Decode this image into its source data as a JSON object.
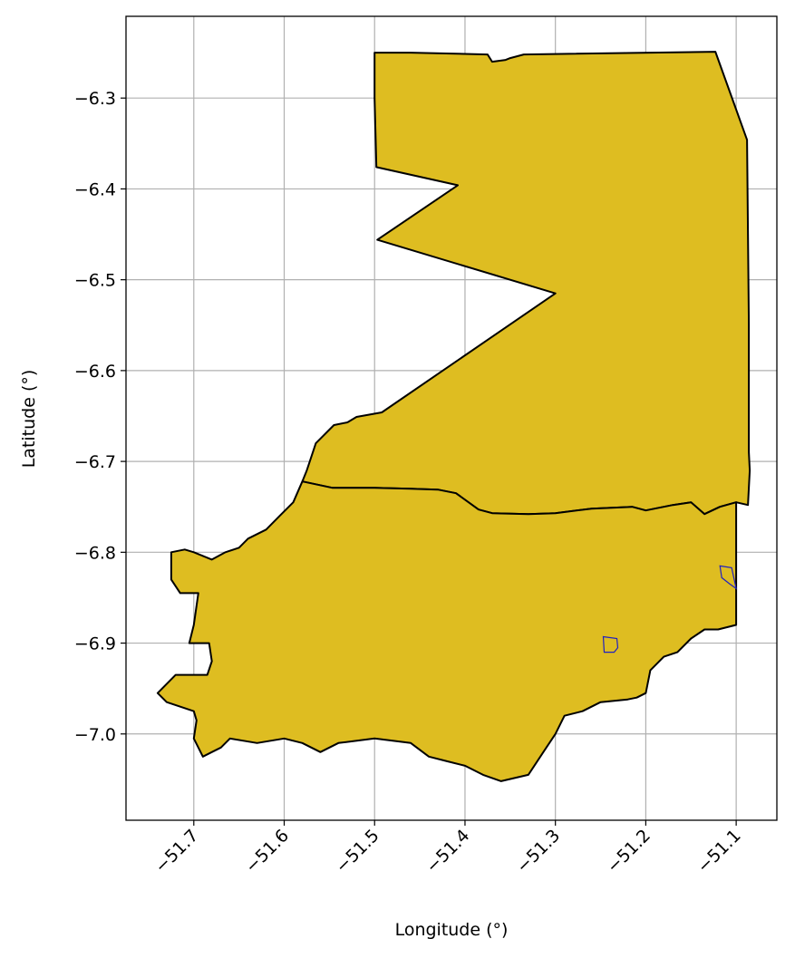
{
  "map": {
    "xlabel": "Longitude (°)",
    "ylabel": "Latitude (°)",
    "fill_color": "#DEBD21",
    "outline_color": "#000000",
    "inset_color": "#2020C0",
    "grid": true,
    "x_ticks": [
      "−51.7",
      "−51.6",
      "−51.5",
      "−51.4",
      "−51.3",
      "−51.2",
      "−51.1"
    ],
    "y_ticks": [
      "−6.3",
      "−6.4",
      "−6.5",
      "−6.6",
      "−6.7",
      "−6.8",
      "−6.9",
      "−7.0"
    ]
  },
  "chart_data": {
    "type": "map",
    "xlim": [
      -51.775,
      -51.055
    ],
    "ylim": [
      -7.095,
      -6.21
    ],
    "x_tick_values": [
      -51.7,
      -51.6,
      -51.5,
      -51.4,
      -51.3,
      -51.2,
      -51.1
    ],
    "y_tick_values": [
      -6.3,
      -6.4,
      -6.5,
      -6.6,
      -6.7,
      -6.8,
      -6.9,
      -7.0
    ],
    "regions": [
      {
        "part": "north",
        "polygon": [
          [
            -51.5,
            -6.25
          ],
          [
            -51.46,
            -6.25
          ],
          [
            -51.375,
            -6.252
          ],
          [
            -51.37,
            -6.26
          ],
          [
            -51.355,
            -6.258
          ],
          [
            -51.35,
            -6.256
          ],
          [
            -51.335,
            -6.252
          ],
          [
            -51.123,
            -6.249
          ],
          [
            -51.088,
            -6.346
          ],
          [
            -51.086,
            -6.55
          ],
          [
            -51.086,
            -6.69
          ],
          [
            -51.085,
            -6.71
          ],
          [
            -51.087,
            -6.748
          ],
          [
            -51.1,
            -6.745
          ],
          [
            -51.118,
            -6.75
          ],
          [
            -51.135,
            -6.758
          ],
          [
            -51.15,
            -6.745
          ],
          [
            -51.17,
            -6.748
          ],
          [
            -51.2,
            -6.754
          ],
          [
            -51.215,
            -6.75
          ],
          [
            -51.26,
            -6.752
          ],
          [
            -51.3,
            -6.757
          ],
          [
            -51.33,
            -6.758
          ],
          [
            -51.37,
            -6.757
          ],
          [
            -51.385,
            -6.753
          ],
          [
            -51.41,
            -6.735
          ],
          [
            -51.43,
            -6.731
          ],
          [
            -51.46,
            -6.73
          ],
          [
            -51.5,
            -6.729
          ],
          [
            -51.547,
            -6.729
          ],
          [
            -51.58,
            -6.722
          ],
          [
            -51.575,
            -6.71
          ],
          [
            -51.565,
            -6.68
          ],
          [
            -51.545,
            -6.66
          ],
          [
            -51.53,
            -6.657
          ],
          [
            -51.52,
            -6.651
          ],
          [
            -51.492,
            -6.646
          ],
          [
            -51.3,
            -6.515
          ],
          [
            -51.497,
            -6.456
          ],
          [
            -51.408,
            -6.396
          ],
          [
            -51.498,
            -6.376
          ],
          [
            -51.5,
            -6.3
          ]
        ]
      },
      {
        "part": "south",
        "polygon": [
          [
            -51.58,
            -6.722
          ],
          [
            -51.547,
            -6.729
          ],
          [
            -51.5,
            -6.729
          ],
          [
            -51.46,
            -6.73
          ],
          [
            -51.43,
            -6.731
          ],
          [
            -51.41,
            -6.735
          ],
          [
            -51.385,
            -6.753
          ],
          [
            -51.37,
            -6.757
          ],
          [
            -51.33,
            -6.758
          ],
          [
            -51.3,
            -6.757
          ],
          [
            -51.26,
            -6.752
          ],
          [
            -51.215,
            -6.75
          ],
          [
            -51.2,
            -6.754
          ],
          [
            -51.17,
            -6.748
          ],
          [
            -51.15,
            -6.745
          ],
          [
            -51.135,
            -6.758
          ],
          [
            -51.118,
            -6.75
          ],
          [
            -51.1,
            -6.745
          ],
          [
            -51.1,
            -6.88
          ],
          [
            -51.12,
            -6.885
          ],
          [
            -51.135,
            -6.885
          ],
          [
            -51.15,
            -6.895
          ],
          [
            -51.165,
            -6.91
          ],
          [
            -51.18,
            -6.915
          ],
          [
            -51.195,
            -6.93
          ],
          [
            -51.2,
            -6.955
          ],
          [
            -51.21,
            -6.96
          ],
          [
            -51.22,
            -6.962
          ],
          [
            -51.25,
            -6.965
          ],
          [
            -51.27,
            -6.975
          ],
          [
            -51.29,
            -6.98
          ],
          [
            -51.3,
            -7.0
          ],
          [
            -51.31,
            -7.015
          ],
          [
            -51.32,
            -7.03
          ],
          [
            -51.33,
            -7.045
          ],
          [
            -51.36,
            -7.052
          ],
          [
            -51.38,
            -7.045
          ],
          [
            -51.4,
            -7.035
          ],
          [
            -51.42,
            -7.03
          ],
          [
            -51.44,
            -7.025
          ],
          [
            -51.46,
            -7.01
          ],
          [
            -51.5,
            -7.005
          ],
          [
            -51.54,
            -7.01
          ],
          [
            -51.56,
            -7.02
          ],
          [
            -51.58,
            -7.01
          ],
          [
            -51.6,
            -7.005
          ],
          [
            -51.63,
            -7.01
          ],
          [
            -51.66,
            -7.005
          ],
          [
            -51.67,
            -7.015
          ],
          [
            -51.68,
            -7.02
          ],
          [
            -51.69,
            -7.025
          ],
          [
            -51.7,
            -7.005
          ],
          [
            -51.697,
            -6.985
          ],
          [
            -51.7,
            -6.975
          ],
          [
            -51.73,
            -6.965
          ],
          [
            -51.74,
            -6.955
          ],
          [
            -51.72,
            -6.935
          ],
          [
            -51.685,
            -6.935
          ],
          [
            -51.68,
            -6.92
          ],
          [
            -51.683,
            -6.9
          ],
          [
            -51.705,
            -6.9
          ],
          [
            -51.7,
            -6.88
          ],
          [
            -51.695,
            -6.845
          ],
          [
            -51.715,
            -6.845
          ],
          [
            -51.725,
            -6.83
          ],
          [
            -51.725,
            -6.8
          ],
          [
            -51.71,
            -6.797
          ],
          [
            -51.7,
            -6.8
          ],
          [
            -51.68,
            -6.808
          ],
          [
            -51.665,
            -6.8
          ],
          [
            -51.65,
            -6.795
          ],
          [
            -51.64,
            -6.785
          ],
          [
            -51.62,
            -6.775
          ],
          [
            -51.605,
            -6.76
          ],
          [
            -51.59,
            -6.745
          ]
        ]
      }
    ],
    "insets": [
      {
        "polygon": [
          [
            -51.247,
            -6.893
          ],
          [
            -51.232,
            -6.895
          ],
          [
            -51.231,
            -6.905
          ],
          [
            -51.235,
            -6.91
          ],
          [
            -51.246,
            -6.91
          ]
        ]
      },
      {
        "polygon": [
          [
            -51.118,
            -6.815
          ],
          [
            -51.105,
            -6.817
          ],
          [
            -51.1,
            -6.84
          ],
          [
            -51.107,
            -6.835
          ],
          [
            -51.116,
            -6.828
          ]
        ]
      }
    ]
  }
}
